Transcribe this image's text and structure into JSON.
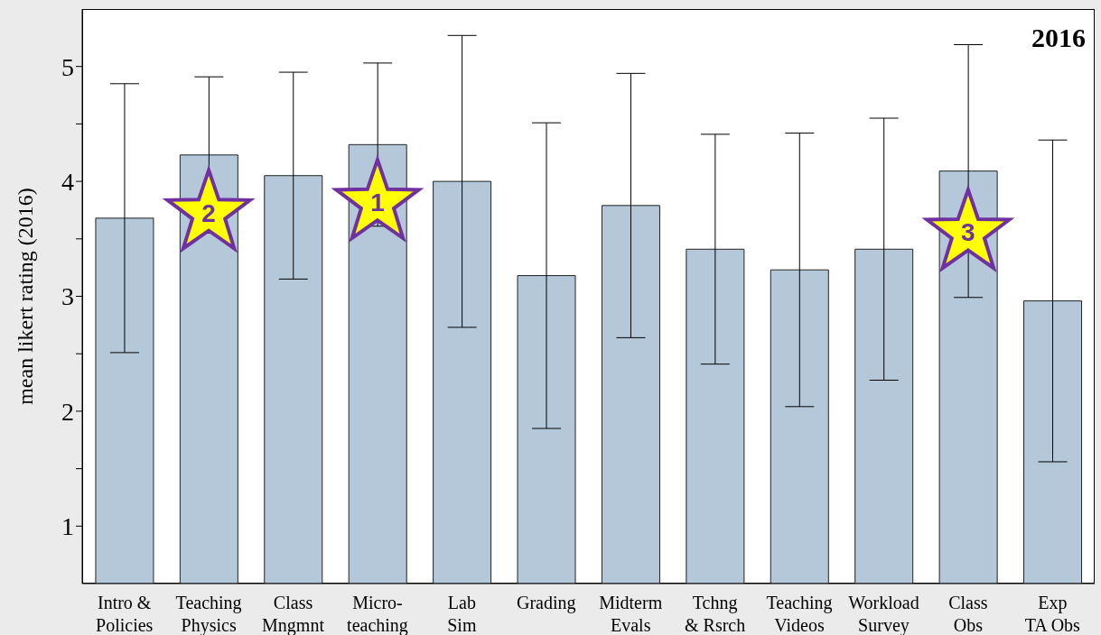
{
  "chart_data": {
    "type": "bar",
    "title": "2016",
    "ylabel": "mean likert rating (2016)",
    "categories": [
      "Intro &\nPolicies",
      "Teaching\nPhysics",
      "Class\nMngmnt",
      "Micro-\nteaching",
      "Lab\nSim",
      "Grading",
      "Midterm\nEvals",
      "Tchng\n& Rsrch",
      "Teaching\nVideos",
      "Workload\nSurvey",
      "Class\nObs",
      "Exp\nTA Obs"
    ],
    "values": [
      3.68,
      4.23,
      4.05,
      4.32,
      4.0,
      3.18,
      3.79,
      3.41,
      3.23,
      3.41,
      4.09,
      2.96
    ],
    "errors": [
      1.17,
      0.68,
      0.9,
      0.71,
      1.27,
      1.33,
      1.15,
      1.0,
      1.19,
      1.14,
      1.1,
      1.4
    ],
    "color": "#b5c8da",
    "ylim": [
      0.5,
      5.5
    ],
    "yticks": [
      1,
      {
        "value": 1.5,
        "label": null
      },
      2,
      {
        "value": 2.5,
        "label": null
      },
      3,
      {
        "value": 3.5,
        "label": null
      },
      4,
      {
        "value": 4.5,
        "label": null
      },
      5
    ],
    "grid": false,
    "legend": false,
    "annotations": [
      {
        "text": "1",
        "x": "Micro-\nteaching",
        "y": 3.85
      },
      {
        "text": "2",
        "x": "Teaching\nPhysics",
        "y": 3.76
      },
      {
        "text": "3",
        "x": "Class\nObs",
        "y": 3.59
      }
    ]
  }
}
